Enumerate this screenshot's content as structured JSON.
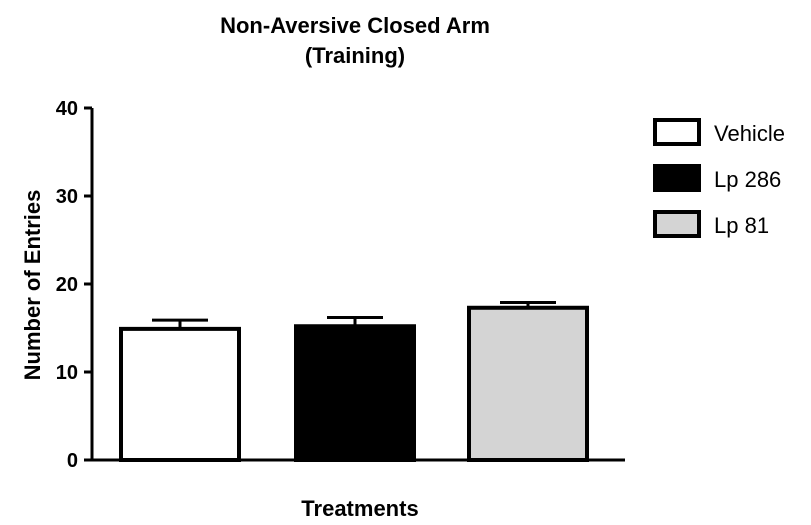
{
  "chart_data": {
    "type": "bar",
    "title_line1": "Non-Aversive Closed Arm",
    "title_line2": "(Training)",
    "xlabel": "Treatments",
    "ylabel": "Number of Entries",
    "ylim": [
      0,
      40
    ],
    "yticks": [
      0,
      10,
      20,
      30,
      40
    ],
    "ytick_labels": [
      "0",
      "10",
      "20",
      "30",
      "40"
    ],
    "grid": false,
    "legend_position": "right",
    "series": [
      {
        "name": "Vehicle",
        "value": 14.9,
        "error": 1.0,
        "color": "#ffffff"
      },
      {
        "name": "Lp 286",
        "value": 15.2,
        "error": 1.0,
        "color": "#000000"
      },
      {
        "name": "Lp 81",
        "value": 17.3,
        "error": 0.6,
        "color": "#d4d4d4"
      }
    ]
  }
}
